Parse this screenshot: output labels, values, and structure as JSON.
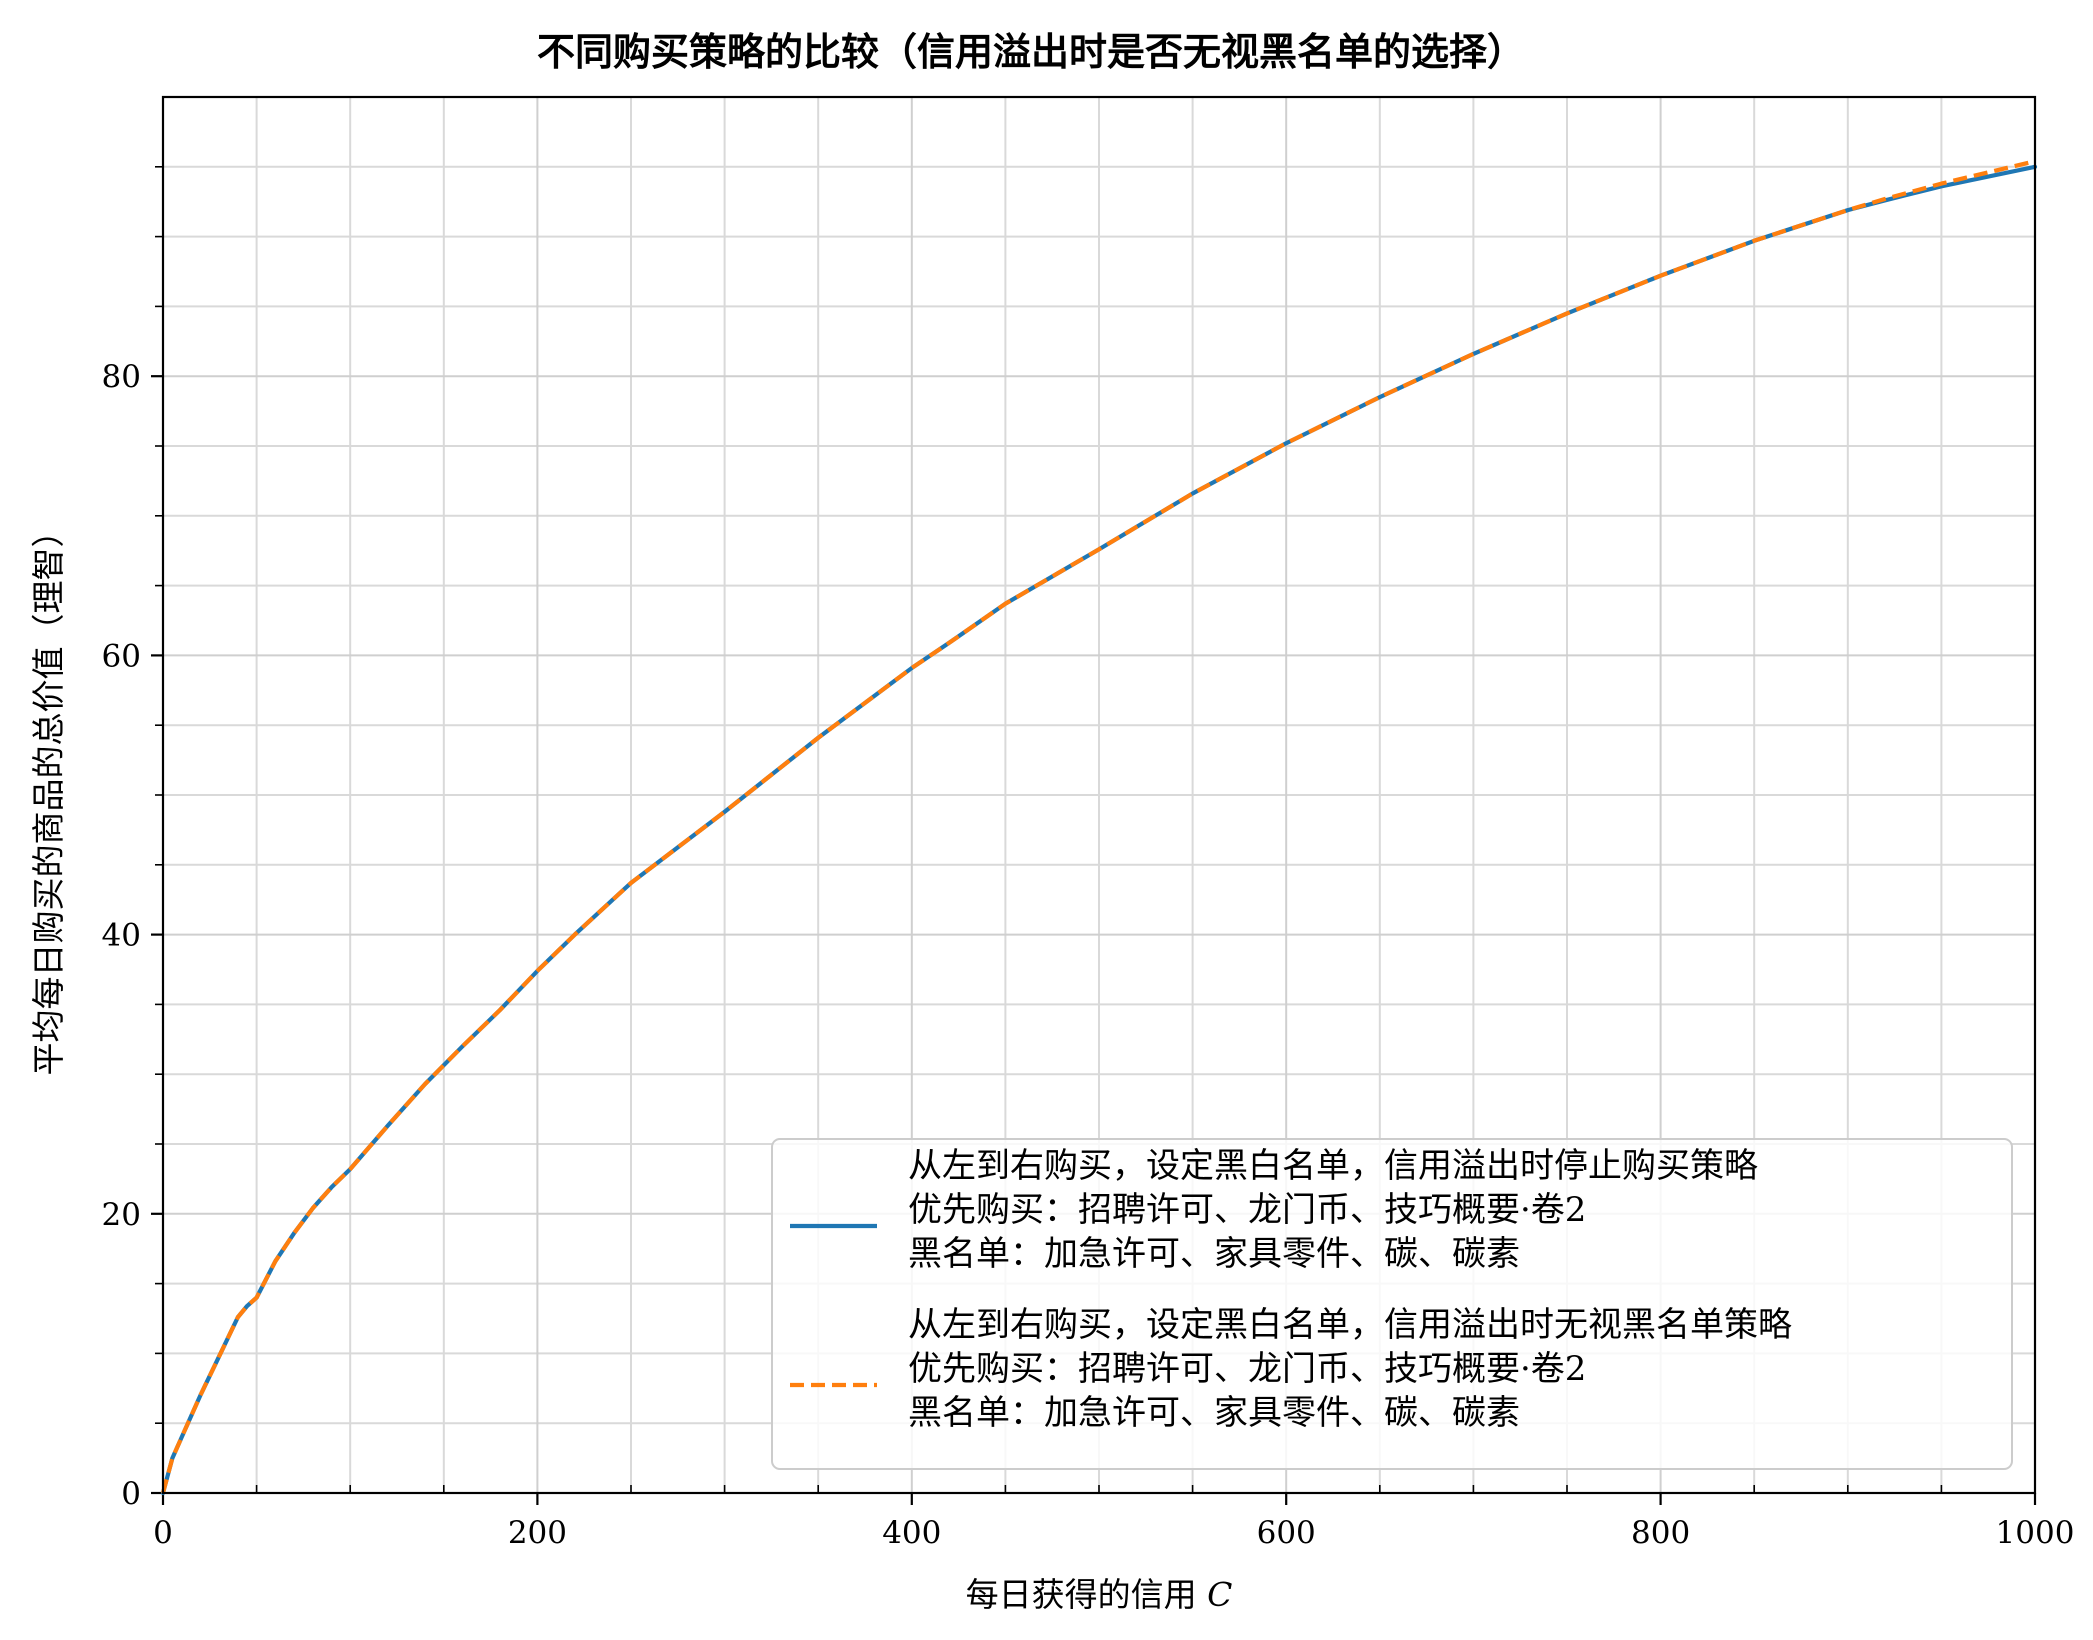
{
  "chart_data": {
    "type": "line",
    "title": "不同购买策略的比较（信用溢出时是否无视黑名单的选择）",
    "xlabel": "每日获得的信用 C",
    "ylabel": "平均每日购买的商品的总价值（理智）",
    "xlim": [
      0,
      1000
    ],
    "ylim": [
      0,
      100
    ],
    "x_ticks": [
      0,
      200,
      400,
      600,
      800,
      1000
    ],
    "y_ticks": [
      0,
      20,
      40,
      60,
      80
    ],
    "grid": true,
    "legend_position": "lower-right",
    "x": [
      0,
      5,
      10,
      20,
      30,
      40,
      45,
      50,
      55,
      60,
      70,
      80,
      90,
      100,
      120,
      140,
      160,
      180,
      200,
      220,
      250,
      300,
      350,
      400,
      420,
      450,
      500,
      550,
      600,
      650,
      700,
      750,
      800,
      850,
      900,
      920,
      950,
      1000
    ],
    "series": [
      {
        "name": "从左到右购买，设定黑白名单，信用溢出时停止购买策略\n优先购买：招聘许可、龙门币、技巧概要·卷2\n黑名单：加急许可、家具零件、碳、碳素",
        "color": "#1f77b4",
        "style": "solid",
        "values": [
          0,
          2.5,
          4.0,
          7.0,
          9.8,
          12.6,
          13.4,
          14.0,
          15.3,
          16.6,
          18.6,
          20.4,
          21.9,
          23.2,
          26.3,
          29.3,
          32.0,
          34.6,
          37.4,
          40.0,
          43.7,
          48.8,
          54.1,
          59.1,
          60.9,
          63.7,
          67.6,
          71.6,
          75.2,
          78.5,
          81.6,
          84.5,
          87.2,
          89.7,
          91.9,
          92.6,
          93.6,
          95.0
        ]
      },
      {
        "name": "从左到右购买，设定黑白名单，信用溢出时无视黑名单策略\n优先购买：招聘许可、龙门币、技巧概要·卷2\n黑名单：加急许可、家具零件、碳、碳素",
        "color": "#ff7f0e",
        "style": "dashed",
        "values": [
          0,
          2.5,
          4.0,
          7.0,
          9.8,
          12.6,
          13.4,
          14.0,
          15.3,
          16.6,
          18.6,
          20.4,
          21.9,
          23.2,
          26.3,
          29.3,
          32.0,
          34.6,
          37.4,
          40.0,
          43.7,
          48.8,
          54.1,
          59.1,
          60.9,
          63.7,
          67.6,
          71.6,
          75.2,
          78.5,
          81.6,
          84.5,
          87.2,
          89.7,
          91.9,
          92.7,
          93.8,
          95.4
        ]
      }
    ]
  }
}
